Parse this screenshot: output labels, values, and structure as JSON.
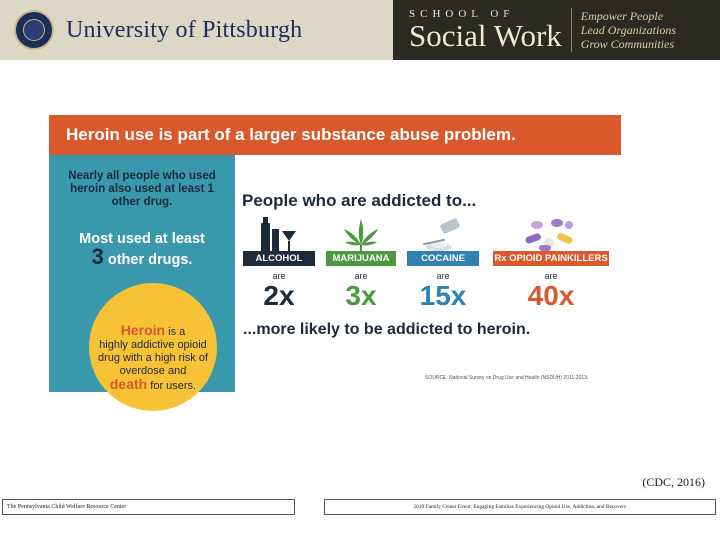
{
  "header": {
    "university_name": "University of Pittsburgh",
    "school_top": "SCHOOL OF",
    "school_main": "Social Work",
    "taglines": [
      "Empower People",
      "Lead Organizations",
      "Grow Communities"
    ]
  },
  "infographic": {
    "title": "Heroin use is part of a larger substance abuse problem.",
    "left_top": "Nearly all people who used heroin also used at least 1 other drug.",
    "left_mid_line1": "Most used at least",
    "left_mid_big": "3",
    "left_mid_rest": "other drugs.",
    "circle_hl1": "Heroin",
    "circle_line1": "is a",
    "circle_line2": "highly addictive opioid drug with a high risk of overdose and",
    "circle_hl2": "death",
    "circle_line3": "for users.",
    "right_head": "People who are addicted to...",
    "drugs": [
      {
        "label": "ALCOHOL",
        "are": "are",
        "mult": "2x",
        "color": "#1d2a3a",
        "label_bg": "#1d2a3a",
        "icon": "bottle-glass-icon"
      },
      {
        "label": "MARIJUANA",
        "are": "are",
        "mult": "3x",
        "color": "#4c9a3f",
        "label_bg": "#4c9a3f",
        "icon": "cannabis-leaf-icon"
      },
      {
        "label": "COCAINE",
        "are": "are",
        "mult": "15x",
        "color": "#2f82b3",
        "label_bg": "#2f82b3",
        "icon": "powder-icon"
      },
      {
        "label": "Rx OPIOID PAINKILLERS",
        "are": "are",
        "mult": "40x",
        "color": "#d9582c",
        "label_bg": "#d9582c",
        "icon": "pills-icon"
      }
    ],
    "bottom_text": "...more likely to be addicted to heroin.",
    "source": "SOURCE: National Survey on Drug Use and Health (NSDUH) 2011-2013."
  },
  "citation": "(CDC, 2016)",
  "footer": {
    "left": "The Pennsylvania Child Welfare Resource Center",
    "right": "2019 Family Center Event: Engaging Families Experiencing Opioid Use, Addiction, and Recovery"
  }
}
